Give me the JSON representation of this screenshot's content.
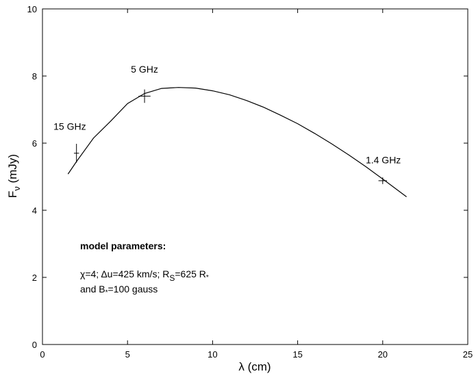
{
  "chart_data": {
    "type": "line",
    "title": "",
    "xlabel": "λ (cm)",
    "ylabel": "F_ν (mJy)",
    "xlim": [
      0,
      25
    ],
    "ylim": [
      0,
      10
    ],
    "xticks": [
      0,
      5,
      10,
      15,
      20,
      25
    ],
    "yticks": [
      0,
      2,
      4,
      6,
      8,
      10
    ],
    "grid": false,
    "legend": "none",
    "series": [
      {
        "kind": "model-curve",
        "x": [
          1.5,
          2.0,
          3.0,
          4.0,
          5.0,
          6.0,
          7.0,
          8.0,
          9.0,
          10.0,
          11.0,
          12.0,
          13.0,
          14.0,
          15.0,
          16.0,
          17.0,
          18.0,
          19.0,
          20.0,
          21.4
        ],
        "y": [
          5.08,
          5.45,
          6.15,
          6.65,
          7.18,
          7.48,
          7.63,
          7.66,
          7.64,
          7.56,
          7.44,
          7.27,
          7.07,
          6.83,
          6.58,
          6.29,
          5.98,
          5.65,
          5.3,
          4.93,
          4.4
        ]
      },
      {
        "kind": "observed-points",
        "x": [
          2.0,
          6.0,
          20.0
        ],
        "y": [
          5.7,
          7.4,
          4.88
        ],
        "yerr": [
          0.28,
          0.2,
          0.1
        ],
        "xerr": [
          0.15,
          0.35,
          0.25
        ]
      }
    ],
    "annotations": [
      {
        "text": "15 GHz",
        "x": 0.65,
        "y": 6.4
      },
      {
        "text": "5 GHz",
        "x": 5.2,
        "y": 8.1
      },
      {
        "text": "1.4 GHz",
        "x": 19.0,
        "y": 5.4
      }
    ],
    "model_parameters": {
      "heading": "model parameters:",
      "line1": {
        "chi": "χ=4; ",
        "du": "Δu=425 km/s; R",
        "rs_sub": "S",
        "rs_val": "=625 R",
        "rs_star": "*"
      },
      "line2": {
        "pre": "and B",
        "star": "*",
        "post": "=100 gauss"
      }
    }
  },
  "ylabel_parts": {
    "main": "F",
    "sub": "ν",
    "unit": " (mJy)"
  }
}
